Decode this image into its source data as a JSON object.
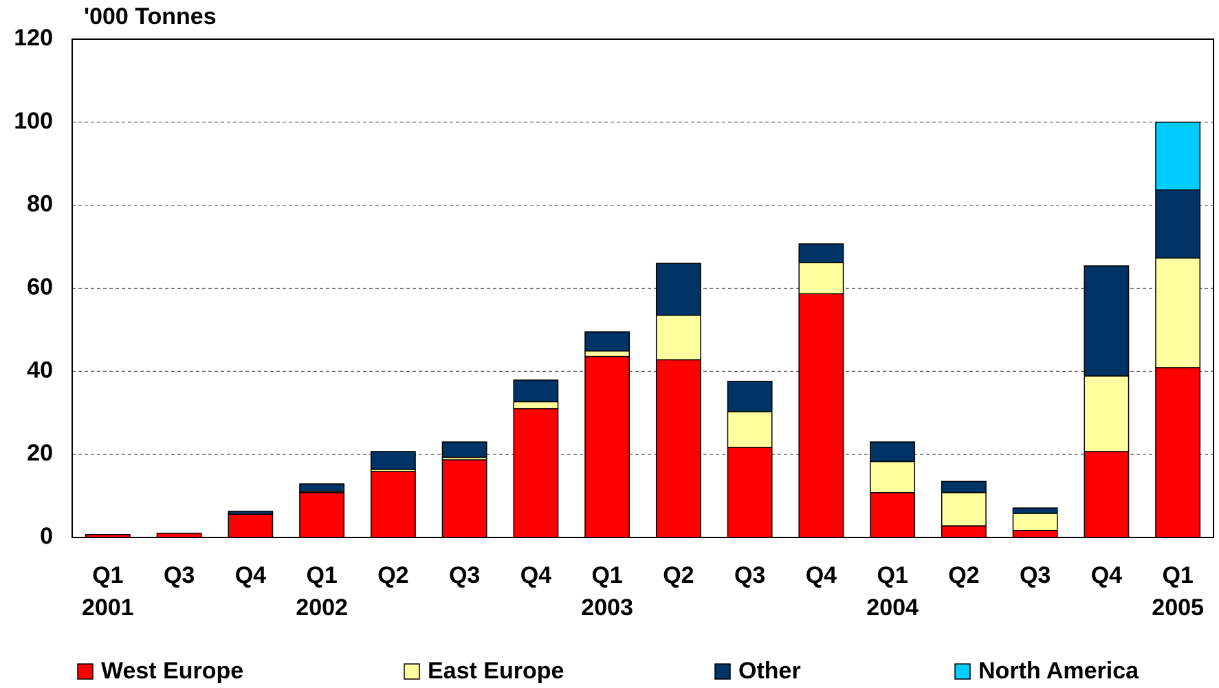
{
  "chart_data": {
    "type": "stacked_bar",
    "title": "'000 Tonnes",
    "categories": [
      "Q1",
      "Q3",
      "Q4",
      "Q1",
      "Q2",
      "Q3",
      "Q4",
      "Q1",
      "Q2",
      "Q3",
      "Q4",
      "Q1",
      "Q2",
      "Q3",
      "Q4",
      "Q1"
    ],
    "years": [
      "2001",
      null,
      null,
      "2002",
      null,
      null,
      null,
      "2003",
      null,
      null,
      null,
      "2004",
      null,
      null,
      null,
      "2005"
    ],
    "series": [
      {
        "name": "West Europe",
        "color": "#ff0000",
        "values": [
          0.7,
          1.0,
          5.6,
          10.8,
          15.9,
          18.7,
          31.0,
          43.6,
          42.8,
          21.7,
          58.7,
          10.8,
          2.8,
          1.7,
          20.7,
          40.9
        ]
      },
      {
        "name": "East Europe",
        "color": "#ffffa0",
        "values": [
          0,
          0,
          0,
          0.3,
          0.5,
          0.6,
          1.7,
          1.3,
          10.7,
          8.6,
          7.5,
          7.5,
          8.0,
          4.1,
          18.2,
          26.4
        ]
      },
      {
        "name": "Other",
        "color": "#003366",
        "values": [
          0,
          0,
          0.7,
          1.8,
          4.3,
          3.7,
          5.2,
          4.6,
          12.5,
          7.3,
          4.5,
          4.7,
          2.7,
          1.3,
          26.5,
          16.4
        ]
      },
      {
        "name": "North America",
        "color": "#00ccff",
        "values": [
          0,
          0,
          0,
          0,
          0,
          0,
          0,
          0,
          0,
          0,
          0,
          0,
          0,
          0,
          0,
          16.3
        ]
      }
    ],
    "ylim": [
      0,
      120
    ],
    "yticks": [
      0,
      20,
      40,
      60,
      80,
      100,
      120
    ],
    "grid": true,
    "legend": "bottom"
  }
}
